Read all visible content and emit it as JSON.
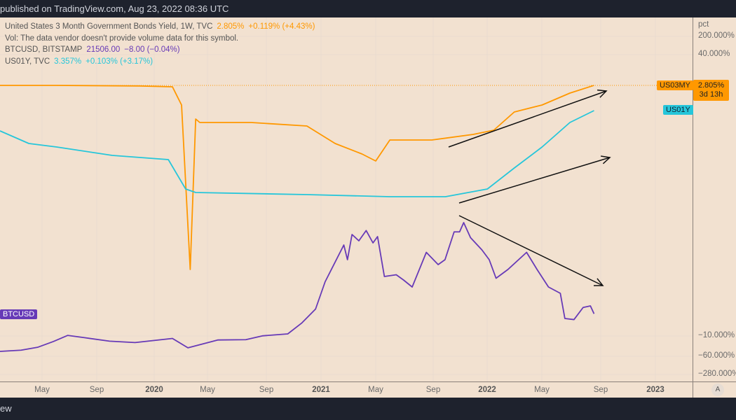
{
  "header": {
    "published": "published on TradingView.com, Aug 23, 2022 08:36 UTC"
  },
  "footer": {
    "brand_fragment": "ew"
  },
  "legend": {
    "main": {
      "name": "United States 3 Month Government Bonds Yield, 1W, TVC",
      "value": "2.805%",
      "change": "+0.119% (+4.43%)"
    },
    "vol": "Vol: The data vendor doesn't provide volume data for this symbol.",
    "btc": {
      "name": "BTCUSD, BITSTAMP",
      "value": "21506.00",
      "change": "−8.00 (−0.04%)"
    },
    "us01y": {
      "name": "US01Y, TVC",
      "value": "3.357%",
      "change": "+0.103% (+3.17%)"
    }
  },
  "chart_data": {
    "type": "line",
    "y_scale": "percent",
    "price_axis_unit": "pct",
    "price_ticks": [
      "200.000%",
      "40.000%",
      "−10.000%",
      "−60.000%",
      "−280.000%"
    ],
    "time_ticks": [
      {
        "label": "May",
        "bold": false
      },
      {
        "label": "Sep",
        "bold": false
      },
      {
        "label": "2020",
        "bold": true
      },
      {
        "label": "May",
        "bold": false
      },
      {
        "label": "Sep",
        "bold": false
      },
      {
        "label": "2021",
        "bold": true
      },
      {
        "label": "May",
        "bold": false
      },
      {
        "label": "Sep",
        "bold": false
      },
      {
        "label": "2022",
        "bold": true
      },
      {
        "label": "May",
        "bold": false
      },
      {
        "label": "Sep",
        "bold": false
      },
      {
        "label": "2023",
        "bold": true
      }
    ],
    "grid": true,
    "colors": {
      "US03MY": "#ff9800",
      "US01Y": "#26c6da",
      "BTCUSD": "#673ab7",
      "background": "#f2e1d0"
    },
    "last_value_labels": {
      "US03MY": "US03MY",
      "US03MY_price": "2.805%",
      "US03MY_countdown": "3d 13h",
      "US01Y": "US01Y",
      "BTCUSD": "BTCUSD",
      "auto": "A"
    },
    "series": [
      {
        "name": "US03MY",
        "points": [
          [
            "2019-01-01",
            2.8
          ],
          [
            "2019-06-01",
            2.8
          ],
          [
            "2019-12-01",
            2.78
          ],
          [
            "2020-02-10",
            2.75
          ],
          [
            "2020-03-01",
            1.0
          ],
          [
            "2020-03-20",
            0.0
          ],
          [
            "2020-04-01",
            0.3
          ],
          [
            "2020-04-10",
            0.1
          ],
          [
            "2020-08-01",
            0.1
          ],
          [
            "2020-12-01",
            0.09
          ],
          [
            "2021-02-01",
            0.04
          ],
          [
            "2021-04-01",
            0.02
          ],
          [
            "2021-05-01",
            0.01
          ],
          [
            "2021-06-01",
            0.05
          ],
          [
            "2021-09-01",
            0.05
          ],
          [
            "2021-12-01",
            0.06
          ],
          [
            "2022-01-15",
            0.15
          ],
          [
            "2022-03-01",
            0.5
          ],
          [
            "2022-05-01",
            1.0
          ],
          [
            "2022-07-01",
            2.0
          ],
          [
            "2022-08-23",
            2.805
          ]
        ]
      },
      {
        "name": "US01Y",
        "points": [
          [
            "2019-01-01",
            2.6
          ],
          [
            "2019-04-01",
            2.4
          ],
          [
            "2019-06-01",
            2.0
          ],
          [
            "2019-10-01",
            1.6
          ],
          [
            "2020-02-01",
            1.5
          ],
          [
            "2020-03-10",
            0.25
          ],
          [
            "2020-04-01",
            0.15
          ],
          [
            "2020-12-01",
            0.1
          ],
          [
            "2021-06-01",
            0.05
          ],
          [
            "2021-10-01",
            0.05
          ],
          [
            "2022-01-01",
            0.25
          ],
          [
            "2022-03-01",
            0.9
          ],
          [
            "2022-05-01",
            2.0
          ],
          [
            "2022-07-01",
            2.9
          ],
          [
            "2022-08-23",
            3.357
          ]
        ]
      },
      {
        "name": "BTCUSD",
        "points": [
          [
            "2019-01-01",
            3500
          ],
          [
            "2019-03-15",
            4000
          ],
          [
            "2019-04-20",
            5200
          ],
          [
            "2019-05-25",
            8000
          ],
          [
            "2019-06-25",
            12000
          ],
          [
            "2019-08-01",
            10500
          ],
          [
            "2019-09-25",
            8200
          ],
          [
            "2019-11-20",
            7300
          ],
          [
            "2020-02-10",
            10000
          ],
          [
            "2020-03-15",
            5000
          ],
          [
            "2020-05-20",
            9000
          ],
          [
            "2020-07-20",
            9200
          ],
          [
            "2020-08-25",
            11700
          ],
          [
            "2020-10-20",
            13000
          ],
          [
            "2020-11-20",
            18000
          ],
          [
            "2020-12-20",
            23000
          ],
          [
            "2021-01-10",
            33000
          ],
          [
            "2021-02-20",
            50000
          ],
          [
            "2021-02-28",
            44000
          ],
          [
            "2021-03-10",
            60000
          ],
          [
            "2021-03-25",
            54000
          ],
          [
            "2021-04-10",
            63000
          ],
          [
            "2021-04-25",
            52000
          ],
          [
            "2021-05-05",
            58000
          ],
          [
            "2021-05-20",
            36000
          ],
          [
            "2021-06-15",
            37000
          ],
          [
            "2021-07-01",
            34000
          ],
          [
            "2021-07-20",
            30000
          ],
          [
            "2021-08-20",
            47000
          ],
          [
            "2021-09-15",
            42000
          ],
          [
            "2021-09-30",
            44000
          ],
          [
            "2021-10-20",
            62000
          ],
          [
            "2021-11-01",
            62000
          ],
          [
            "2021-11-10",
            69000
          ],
          [
            "2021-11-25",
            57000
          ],
          [
            "2021-12-20",
            48000
          ],
          [
            "2022-01-05",
            44000
          ],
          [
            "2022-01-20",
            35000
          ],
          [
            "2022-02-15",
            40000
          ],
          [
            "2022-03-28",
            47000
          ],
          [
            "2022-04-20",
            40000
          ],
          [
            "2022-05-15",
            30000
          ],
          [
            "2022-06-10",
            28000
          ],
          [
            "2022-06-20",
            20000
          ],
          [
            "2022-07-10",
            19500
          ],
          [
            "2022-07-30",
            23500
          ],
          [
            "2022-08-15",
            24000
          ],
          [
            "2022-08-23",
            21506
          ]
        ]
      }
    ],
    "annotations": [
      {
        "type": "arrow",
        "direction": "up"
      },
      {
        "type": "arrow",
        "direction": "up"
      },
      {
        "type": "arrow",
        "direction": "down"
      }
    ]
  }
}
